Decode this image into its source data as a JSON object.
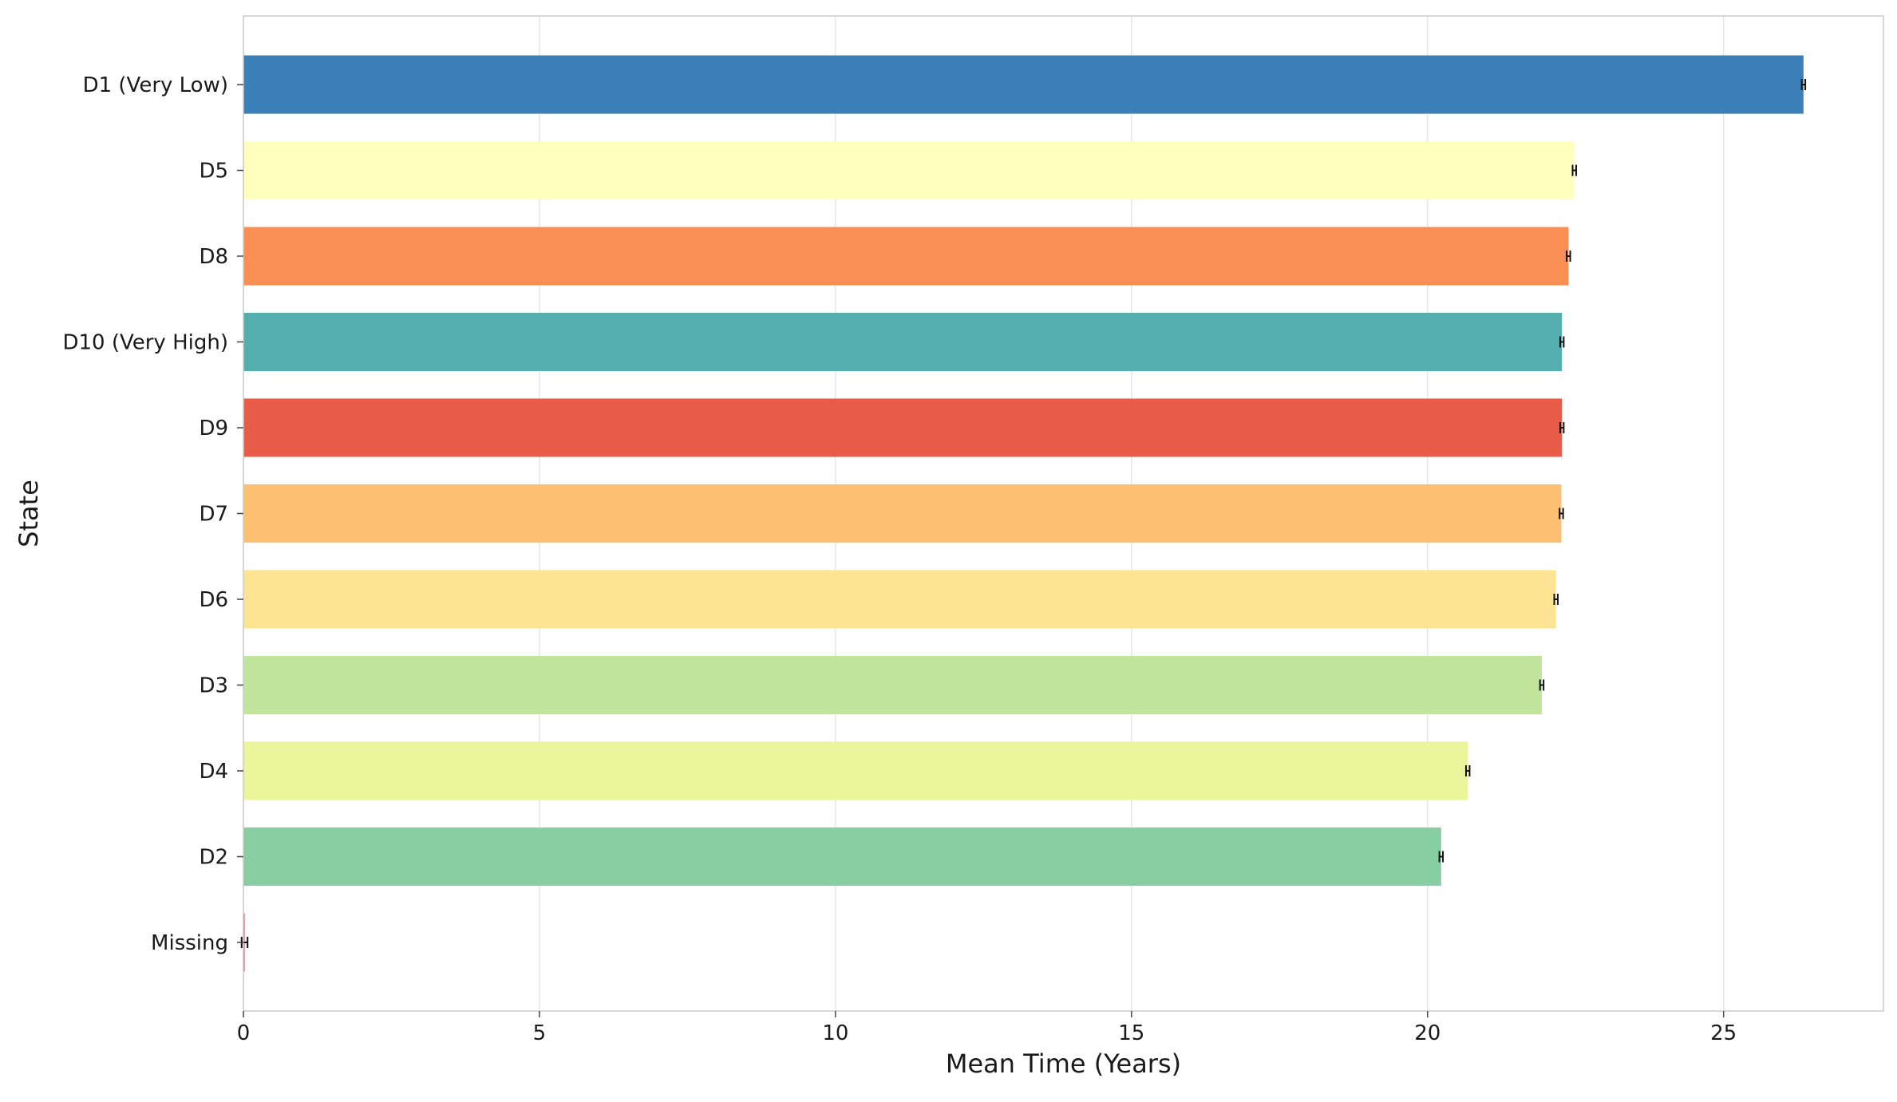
{
  "chart_data": {
    "type": "bar",
    "orientation": "horizontal",
    "title": "",
    "xlabel": "Mean Time (Years)",
    "ylabel": "State",
    "xlim": [
      0,
      27.7
    ],
    "xticks": [
      0,
      5,
      10,
      15,
      20,
      25
    ],
    "grid": "vertical",
    "legend": "none",
    "categories": [
      "D1 (Very Low)",
      "D5",
      "D8",
      "D10 (Very High)",
      "D9",
      "D7",
      "D6",
      "D3",
      "D4",
      "D2",
      "Missing"
    ],
    "values": [
      26.35,
      22.48,
      22.38,
      22.27,
      22.27,
      22.26,
      22.17,
      21.93,
      20.68,
      20.23,
      0.02
    ],
    "errors": [
      0.03,
      0.03,
      0.03,
      0.03,
      0.03,
      0.03,
      0.03,
      0.03,
      0.03,
      0.03,
      0.05
    ],
    "colors": [
      "#3a7fb7",
      "#ffffbe",
      "#f98f55",
      "#54aeae",
      "#e75d4a",
      "#fdbf71",
      "#fee392",
      "#c2e59e",
      "#e9f69c",
      "#87cfa2",
      "#cc4055"
    ]
  }
}
